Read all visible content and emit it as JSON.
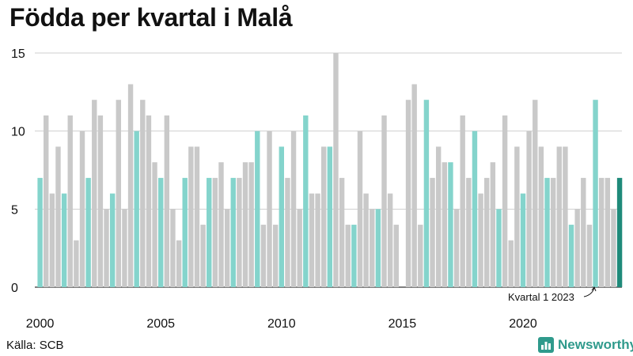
{
  "header": {
    "title": "Födda per kvartal i Malå"
  },
  "footer": {
    "source": "Källa: SCB",
    "brand": "Newsworthy",
    "brand_icon": "bar-chart-logo-icon"
  },
  "colors": {
    "q1": "#84d4cc",
    "other": "#c9c9c9",
    "highlight": "#1f8a7a",
    "brand": "#2f9a8c"
  },
  "chart_data": {
    "type": "bar",
    "title": "Födda per kvartal i Malå",
    "xlabel": "",
    "ylabel": "",
    "ylim": [
      0,
      15
    ],
    "yticks": [
      0,
      5,
      10,
      15
    ],
    "start": {
      "year": 2000,
      "quarter": 1
    },
    "xtick_labels": [
      "2000",
      "2005",
      "2010",
      "2015",
      "2020"
    ],
    "annotation": "Kvartal 1 2023",
    "grid": true,
    "values": [
      7,
      11,
      6,
      9,
      6,
      11,
      3,
      10,
      7,
      12,
      11,
      5,
      6,
      12,
      5,
      13,
      10,
      12,
      11,
      8,
      7,
      11,
      5,
      3,
      7,
      9,
      9,
      4,
      7,
      7,
      8,
      5,
      7,
      7,
      8,
      8,
      10,
      4,
      10,
      4,
      9,
      7,
      10,
      5,
      11,
      6,
      6,
      9,
      9,
      15,
      7,
      4,
      4,
      10,
      6,
      5,
      5,
      11,
      6,
      4,
      0,
      12,
      13,
      4,
      12,
      7,
      9,
      8,
      8,
      5,
      11,
      7,
      10,
      6,
      7,
      8,
      5,
      11,
      3,
      9,
      6,
      10,
      12,
      9,
      7,
      7,
      9,
      9,
      4,
      5,
      7,
      4,
      12,
      7,
      7,
      5,
      7
    ]
  }
}
